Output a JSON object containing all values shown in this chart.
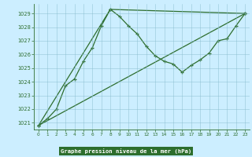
{
  "title": "Graphe pression niveau de la mer (hPa)",
  "background_color": "#b8dde8",
  "plot_bg_color": "#cceeff",
  "line_color": "#2d6e2d",
  "label_bg_color": "#2d6e2d",
  "label_text_color": "#ffffff",
  "grid_color": "#88bbcc",
  "xlim": [
    -0.5,
    23.5
  ],
  "ylim": [
    1020.5,
    1029.7
  ],
  "xticks": [
    0,
    1,
    2,
    3,
    4,
    5,
    6,
    7,
    8,
    9,
    10,
    11,
    12,
    13,
    14,
    15,
    16,
    17,
    18,
    19,
    20,
    21,
    22,
    23
  ],
  "yticks": [
    1021,
    1022,
    1023,
    1024,
    1025,
    1026,
    1027,
    1028,
    1029
  ],
  "series1_x": [
    0,
    1,
    2,
    3,
    4,
    5,
    6,
    7,
    8,
    9,
    10,
    11,
    12,
    13,
    14,
    15,
    16,
    17,
    18,
    19,
    20,
    21,
    22,
    23
  ],
  "series1_y": [
    1020.8,
    1021.3,
    1022.0,
    1023.7,
    1024.2,
    1025.5,
    1026.5,
    1028.1,
    1029.3,
    1028.8,
    1028.1,
    1027.5,
    1026.6,
    1025.9,
    1025.5,
    1025.3,
    1024.7,
    1025.2,
    1025.6,
    1026.1,
    1027.0,
    1027.15,
    1028.1,
    1029.0
  ],
  "series2_x": [
    0,
    23
  ],
  "series2_y": [
    1020.8,
    1029.0
  ],
  "series3_x": [
    0,
    8,
    23
  ],
  "series3_y": [
    1020.8,
    1029.3,
    1029.0
  ]
}
